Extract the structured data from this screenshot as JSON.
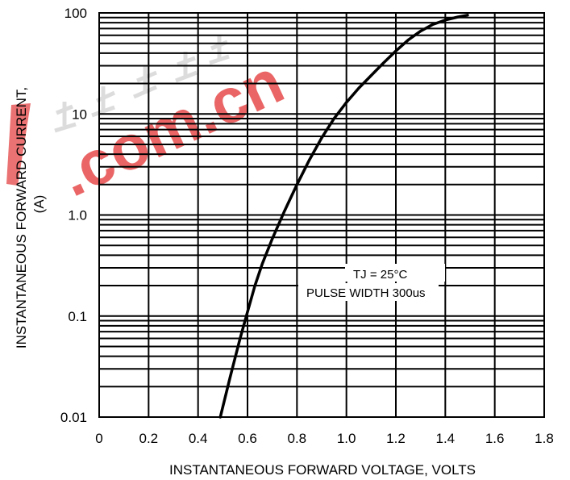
{
  "chart_data": {
    "type": "line",
    "title": "",
    "xlabel": "INSTANTANEOUS FORWARD VOLTAGE, VOLTS",
    "ylabel_line1": "INSTANTANEOUS FORWARD CURRENT,",
    "ylabel_line2": "(A)",
    "xlim": [
      0,
      1.8
    ],
    "ylim": [
      0.01,
      100
    ],
    "y_scale": "log",
    "grid": true,
    "x_ticks": [
      0,
      0.2,
      0.4,
      0.6,
      0.8,
      1.0,
      1.2,
      1.4,
      1.6,
      1.8
    ],
    "x_tick_labels": [
      "0",
      "0.2",
      "0.4",
      "0.6",
      "0.8",
      "1.0",
      "1.2",
      "1.4",
      "1.6",
      "1.8"
    ],
    "y_ticks": [
      0.01,
      0.1,
      1.0,
      10,
      100
    ],
    "y_tick_labels": [
      "0.01",
      "0.1",
      "1.0",
      "10",
      "100"
    ],
    "series": [
      {
        "x": [
          0.49,
          0.53,
          0.57,
          0.6,
          0.63,
          0.66,
          0.7,
          0.75,
          0.8,
          0.85,
          0.9,
          0.95,
          1.0,
          1.05,
          1.1,
          1.15,
          1.2,
          1.25,
          1.3,
          1.35,
          1.4,
          1.45,
          1.49
        ],
        "y": [
          0.01,
          0.025,
          0.06,
          0.11,
          0.2,
          0.33,
          0.58,
          1.1,
          2.0,
          3.5,
          5.8,
          9.0,
          13,
          18,
          24,
          32,
          42,
          54,
          66,
          77,
          85,
          91,
          95
        ]
      }
    ],
    "annotations": {
      "line1": "TJ = 25°C",
      "line2": "PULSE WIDTH 300us"
    }
  },
  "watermark": {
    "text": ".com.cn",
    "color": "#e02020"
  }
}
